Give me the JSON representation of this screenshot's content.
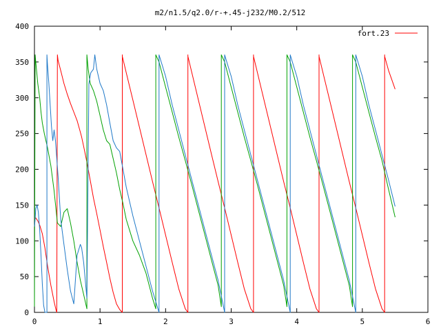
{
  "chart_data": {
    "type": "line",
    "title": "m2/n1.5/q2.0/r-+.45-j232/M0.2/512",
    "xlabel": "",
    "ylabel": "",
    "xlim": [
      0,
      6
    ],
    "ylim": [
      0,
      400
    ],
    "xticks": [
      0,
      1,
      2,
      3,
      4,
      5,
      6
    ],
    "yticks": [
      0,
      50,
      100,
      150,
      200,
      250,
      300,
      350,
      400
    ],
    "xtick_labels": [
      "0",
      "1",
      "2",
      "3",
      "4",
      "5",
      "6"
    ],
    "ytick_labels": [
      "0",
      "50",
      "100",
      "150",
      "200",
      "250",
      "300",
      "350",
      "400"
    ],
    "grid": false,
    "legend": {
      "position": "top-right",
      "entries": [
        "fort.23"
      ]
    },
    "series": [
      {
        "name": "fort.23",
        "color": "#ff0000",
        "x": [
          0.0,
          0.02,
          0.05,
          0.08,
          0.12,
          0.16,
          0.2,
          0.25,
          0.3,
          0.33,
          0.34,
          0.35,
          0.36,
          0.4,
          0.45,
          0.5,
          0.55,
          0.6,
          0.65,
          0.7,
          0.72,
          0.75,
          0.8,
          0.85,
          0.9,
          0.95,
          1.0,
          1.05,
          1.1,
          1.15,
          1.2,
          1.25,
          1.3,
          1.34,
          1.34,
          1.34,
          1.4,
          1.5,
          1.6,
          1.7,
          1.8,
          1.9,
          2.0,
          2.1,
          2.2,
          2.3,
          2.34,
          2.34,
          2.34,
          2.4,
          2.5,
          2.6,
          2.7,
          2.8,
          2.9,
          3.0,
          3.1,
          3.2,
          3.3,
          3.34,
          3.34,
          3.34,
          3.4,
          3.5,
          3.6,
          3.7,
          3.8,
          3.9,
          4.0,
          4.1,
          4.2,
          4.3,
          4.34,
          4.34,
          4.34,
          4.4,
          4.5,
          4.6,
          4.7,
          4.8,
          4.9,
          5.0,
          5.1,
          5.2,
          5.3,
          5.34,
          5.34,
          5.34,
          5.4,
          5.45,
          5.5
        ],
        "y": [
          130,
          132,
          128,
          122,
          110,
          90,
          65,
          38,
          15,
          3,
          0,
          360,
          352,
          338,
          320,
          305,
          292,
          280,
          268,
          252,
          245,
          232,
          210,
          185,
          160,
          138,
          115,
          92,
          70,
          48,
          28,
          12,
          4,
          0,
          360,
          358,
          335,
          297,
          259,
          221,
          183,
          146,
          108,
          70,
          33,
          5,
          0,
          360,
          358,
          335,
          297,
          259,
          221,
          183,
          146,
          108,
          70,
          33,
          5,
          0,
          360,
          358,
          335,
          297,
          259,
          221,
          183,
          146,
          108,
          70,
          33,
          5,
          0,
          360,
          358,
          335,
          297,
          259,
          221,
          183,
          146,
          108,
          70,
          33,
          5,
          0,
          360,
          358,
          338,
          325,
          312
        ]
      },
      {
        "name": "",
        "color": "#00a000",
        "x": [
          0.0,
          0.01,
          0.02,
          0.03,
          0.05,
          0.08,
          0.1,
          0.12,
          0.15,
          0.2,
          0.25,
          0.3,
          0.35,
          0.4,
          0.45,
          0.5,
          0.55,
          0.6,
          0.65,
          0.7,
          0.75,
          0.8,
          0.8,
          0.82,
          0.85,
          0.9,
          0.95,
          1.0,
          1.05,
          1.1,
          1.15,
          1.2,
          1.25,
          1.3,
          1.35,
          1.4,
          1.5,
          1.6,
          1.7,
          1.8,
          1.85,
          1.85,
          1.9,
          2.0,
          2.1,
          2.2,
          2.3,
          2.4,
          2.5,
          2.6,
          2.7,
          2.8,
          2.85,
          2.85,
          2.9,
          3.0,
          3.1,
          3.2,
          3.3,
          3.4,
          3.5,
          3.6,
          3.7,
          3.8,
          3.85,
          3.85,
          3.9,
          4.0,
          4.1,
          4.2,
          4.3,
          4.4,
          4.5,
          4.6,
          4.7,
          4.8,
          4.85,
          4.85,
          4.9,
          5.0,
          5.1,
          5.2,
          5.3,
          5.4,
          5.5
        ],
        "y": [
          8,
          360,
          350,
          340,
          320,
          300,
          280,
          265,
          250,
          230,
          205,
          170,
          125,
          120,
          140,
          145,
          125,
          100,
          70,
          45,
          25,
          5,
          360,
          340,
          320,
          310,
          295,
          275,
          255,
          240,
          235,
          215,
          195,
          172,
          152,
          130,
          100,
          80,
          55,
          20,
          5,
          360,
          350,
          315,
          280,
          245,
          212,
          178,
          143,
          108,
          73,
          38,
          8,
          360,
          350,
          315,
          280,
          245,
          212,
          178,
          143,
          108,
          73,
          38,
          8,
          360,
          350,
          315,
          280,
          245,
          212,
          178,
          143,
          108,
          73,
          38,
          8,
          360,
          350,
          315,
          280,
          245,
          212,
          172,
          133
        ]
      },
      {
        "name": "",
        "color": "#1e78c8",
        "x": [
          0.0,
          0.01,
          0.02,
          0.04,
          0.06,
          0.08,
          0.1,
          0.12,
          0.14,
          0.16,
          0.18,
          0.19,
          0.19,
          0.2,
          0.22,
          0.24,
          0.26,
          0.28,
          0.3,
          0.32,
          0.34,
          0.36,
          0.38,
          0.4,
          0.45,
          0.5,
          0.55,
          0.6,
          0.65,
          0.7,
          0.72,
          0.75,
          0.78,
          0.8,
          0.83,
          0.86,
          0.9,
          0.92,
          0.92,
          0.95,
          1.0,
          1.05,
          1.1,
          1.15,
          1.2,
          1.25,
          1.3,
          1.35,
          1.4,
          1.5,
          1.6,
          1.7,
          1.8,
          1.9,
          1.9,
          1.95,
          2.0,
          2.1,
          2.2,
          2.3,
          2.4,
          2.5,
          2.6,
          2.7,
          2.8,
          2.9,
          2.9,
          2.95,
          3.0,
          3.1,
          3.2,
          3.3,
          3.4,
          3.5,
          3.6,
          3.7,
          3.8,
          3.9,
          3.9,
          3.95,
          4.0,
          4.1,
          4.2,
          4.3,
          4.4,
          4.5,
          4.6,
          4.7,
          4.8,
          4.9,
          4.9,
          4.95,
          5.0,
          5.1,
          5.2,
          5.3,
          5.4,
          5.5
        ],
        "y": [
          120,
          130,
          145,
          150,
          140,
          115,
          80,
          40,
          10,
          0,
          0,
          0,
          360,
          345,
          320,
          290,
          260,
          240,
          255,
          240,
          215,
          190,
          160,
          130,
          95,
          60,
          30,
          12,
          80,
          95,
          90,
          70,
          40,
          20,
          320,
          335,
          340,
          360,
          360,
          340,
          320,
          310,
          290,
          265,
          240,
          230,
          225,
          200,
          175,
          135,
          100,
          65,
          30,
          0,
          360,
          345,
          330,
          290,
          255,
          220,
          185,
          150,
          115,
          80,
          45,
          0,
          360,
          345,
          330,
          290,
          255,
          220,
          185,
          150,
          115,
          80,
          45,
          0,
          360,
          345,
          330,
          290,
          255,
          220,
          185,
          150,
          115,
          80,
          45,
          0,
          360,
          345,
          330,
          290,
          255,
          220,
          185,
          148
        ]
      }
    ]
  }
}
